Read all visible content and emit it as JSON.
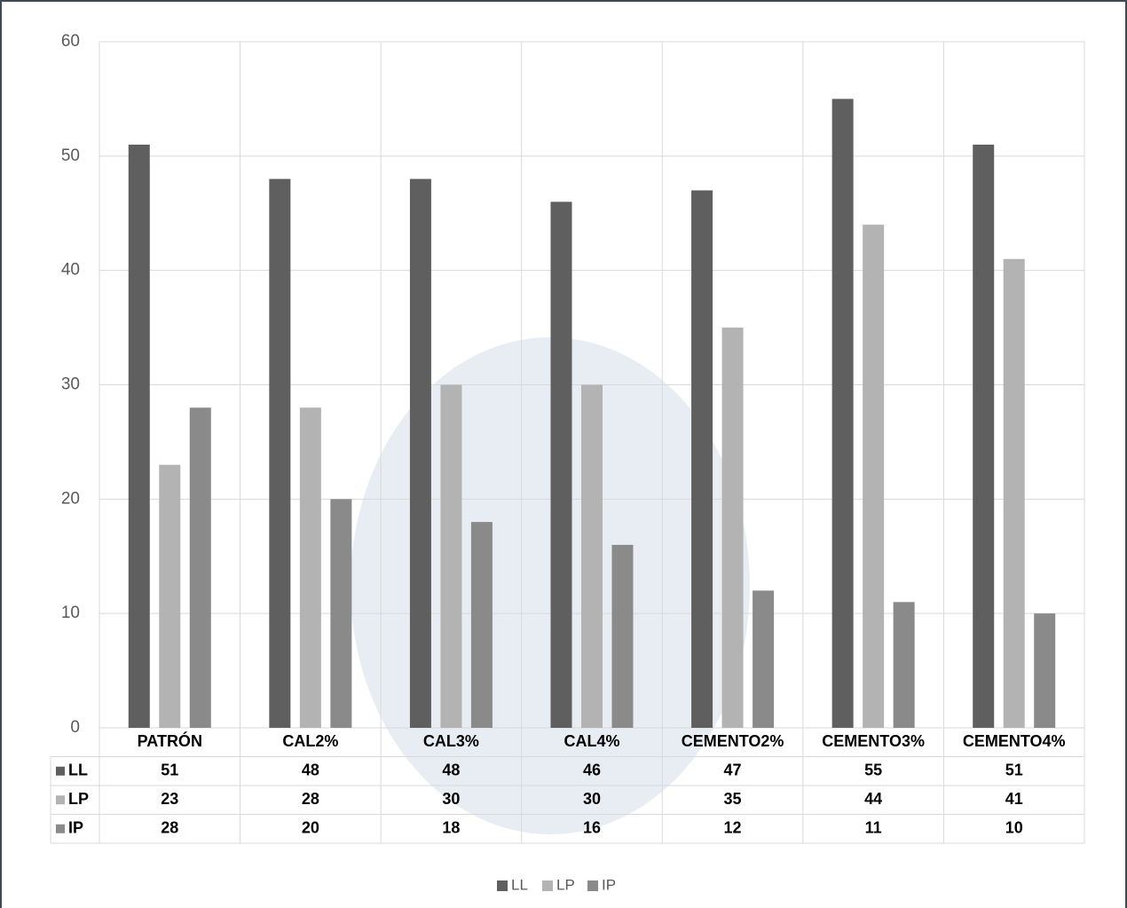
{
  "chart_data": {
    "type": "bar",
    "categories": [
      "PATRÓN",
      "CAL2%",
      "CAL3%",
      "CAL4%",
      "CEMENTO2%",
      "CEMENTO3%",
      "CEMENTO4%"
    ],
    "series": [
      {
        "name": "LL",
        "color": "#5f5f5f",
        "values": [
          51,
          48,
          48,
          46,
          47,
          55,
          51
        ]
      },
      {
        "name": "LP",
        "color": "#b3b3b3",
        "values": [
          23,
          28,
          30,
          30,
          35,
          44,
          41
        ]
      },
      {
        "name": "IP",
        "color": "#8a8a8a",
        "values": [
          28,
          20,
          18,
          16,
          12,
          11,
          10
        ]
      }
    ],
    "ylim": [
      0,
      60
    ],
    "yticks": [
      0,
      10,
      20,
      30,
      40,
      50,
      60
    ],
    "grid": true,
    "legend": "bottom",
    "data_table": true
  }
}
